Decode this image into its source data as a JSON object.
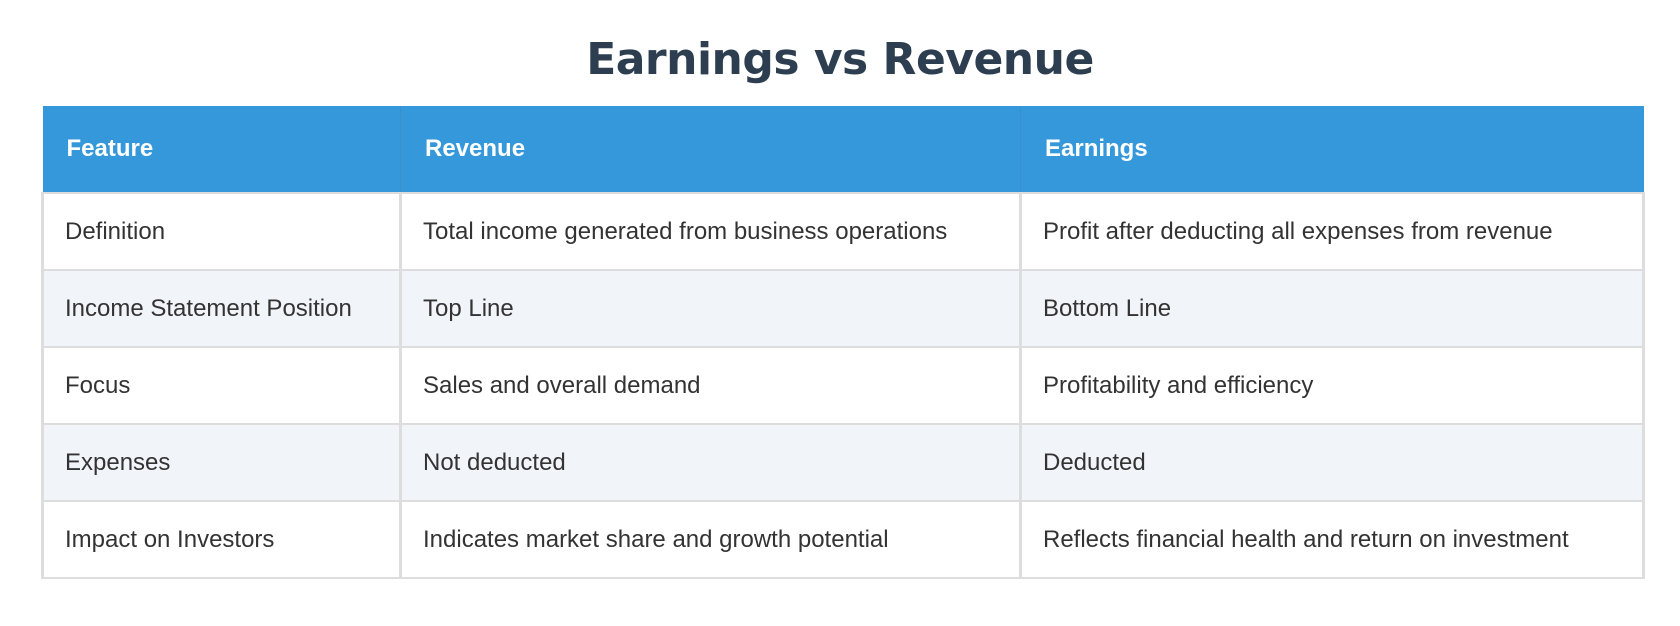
{
  "title": "Earnings vs Revenue",
  "colors": {
    "header_bg": "#3498db",
    "header_text": "#ffffff",
    "title": "#2c3e50",
    "row_alt_bg": "#f1f4f9",
    "border": "#dddddd",
    "body_text": "#333333"
  },
  "table": {
    "headers": [
      "Feature",
      "Revenue",
      "Earnings"
    ],
    "rows": [
      {
        "feature": "Definition",
        "revenue": "Total income generated from business operations",
        "earnings": "Profit after deducting all expenses from revenue"
      },
      {
        "feature": "Income Statement Position",
        "revenue": "Top Line",
        "earnings": "Bottom Line"
      },
      {
        "feature": "Focus",
        "revenue": "Sales and overall demand",
        "earnings": "Profitability and efficiency"
      },
      {
        "feature": "Expenses",
        "revenue": "Not deducted",
        "earnings": "Deducted"
      },
      {
        "feature": "Impact on Investors",
        "revenue": "Indicates market share and growth potential",
        "earnings": "Reflects financial health and return on investment"
      }
    ]
  }
}
